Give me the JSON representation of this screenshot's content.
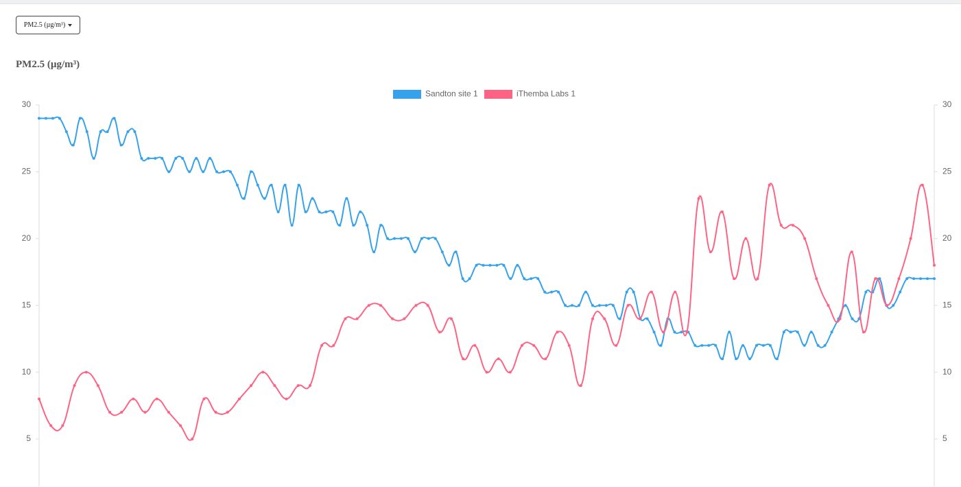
{
  "dropdown": {
    "label": "PM2.5 (µg/m³)"
  },
  "chart_data": {
    "type": "line",
    "title": "PM2.5 (µg/m³)",
    "series": [
      {
        "name": "Sandton site 1",
        "color": "#36a2eb",
        "values": [
          29,
          29,
          29,
          29,
          28,
          27,
          29,
          28,
          26,
          28,
          28,
          29,
          27,
          28,
          28,
          26,
          26,
          26,
          26,
          25,
          26,
          26,
          25,
          26,
          25,
          26,
          25,
          25,
          25,
          24,
          23,
          25,
          24,
          23,
          24,
          22,
          24,
          21,
          24,
          22,
          23,
          22,
          22,
          22,
          21,
          23,
          21,
          22,
          21,
          19,
          21,
          20,
          20,
          20,
          20,
          19,
          20,
          20,
          20,
          19,
          18,
          19,
          17,
          17,
          18,
          18,
          18,
          18,
          18,
          17,
          18,
          17,
          17,
          17,
          16,
          16,
          16,
          15,
          15,
          15,
          16,
          15,
          15,
          15,
          15,
          14,
          16,
          16,
          14,
          14,
          13,
          12,
          14,
          13,
          13,
          13,
          12,
          12,
          12,
          12,
          11,
          13,
          11,
          12,
          11,
          12,
          12,
          12,
          11,
          13,
          13,
          13,
          12,
          13,
          12,
          12,
          13,
          14,
          15,
          14,
          14,
          16,
          16,
          17,
          15,
          15,
          16,
          17,
          17,
          17,
          17,
          17
        ]
      },
      {
        "name": "iThemba Labs 1",
        "color": "#ff6384",
        "values": [
          8,
          6,
          6,
          9,
          10,
          9,
          7,
          7,
          8,
          7,
          8,
          7,
          6,
          5,
          8,
          7,
          7,
          8,
          9,
          10,
          9,
          8,
          9,
          9,
          12,
          12,
          14,
          14,
          15,
          15,
          14,
          14,
          15,
          15,
          13,
          14,
          11,
          12,
          10,
          11,
          10,
          12,
          12,
          11,
          13,
          12,
          9,
          14,
          14,
          12,
          15,
          14,
          16,
          13,
          16,
          13,
          23,
          19,
          22,
          17,
          20,
          17,
          24,
          21,
          21,
          20,
          17,
          15,
          14,
          19,
          13,
          17,
          15,
          17,
          20,
          24,
          18
        ]
      }
    ],
    "ylim": [
      1.5,
      30
    ],
    "yticks": [
      5,
      10,
      15,
      20,
      25,
      30
    ],
    "y2lim": [
      1.5,
      30
    ],
    "y2ticks": [
      5,
      10,
      15,
      20,
      25,
      30
    ],
    "grid": false,
    "legend": "top"
  }
}
